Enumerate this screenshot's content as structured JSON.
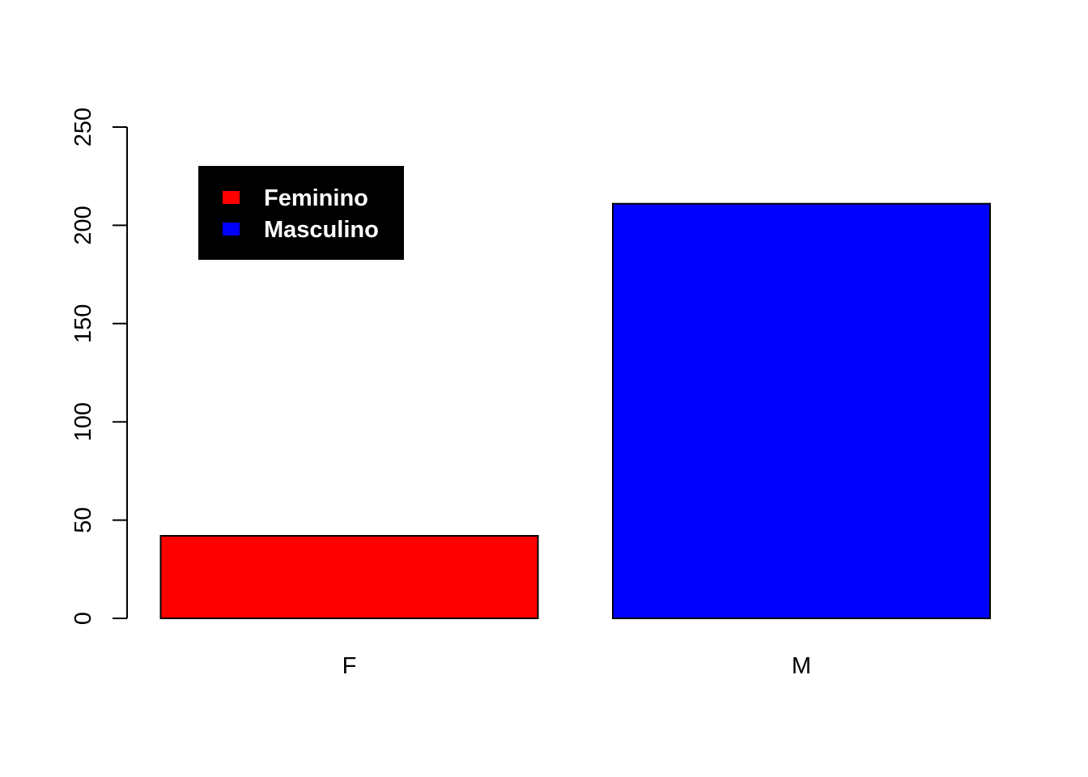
{
  "chart_data": {
    "type": "bar",
    "title": "",
    "xlabel": "",
    "ylabel": "",
    "categories": [
      "F",
      "M"
    ],
    "values": [
      42,
      211
    ],
    "bar_colors": [
      "#ff0000",
      "#0000ff"
    ],
    "ylim": [
      0,
      250
    ],
    "y_ticks": [
      0,
      50,
      100,
      150,
      200,
      250
    ],
    "grid": false,
    "legend": {
      "position": "top-left",
      "background": "#000000",
      "text_color": "#ffffff",
      "entries": [
        {
          "label": "Feminino",
          "color": "#ff0000"
        },
        {
          "label": "Masculino",
          "color": "#0000ff"
        }
      ]
    }
  }
}
